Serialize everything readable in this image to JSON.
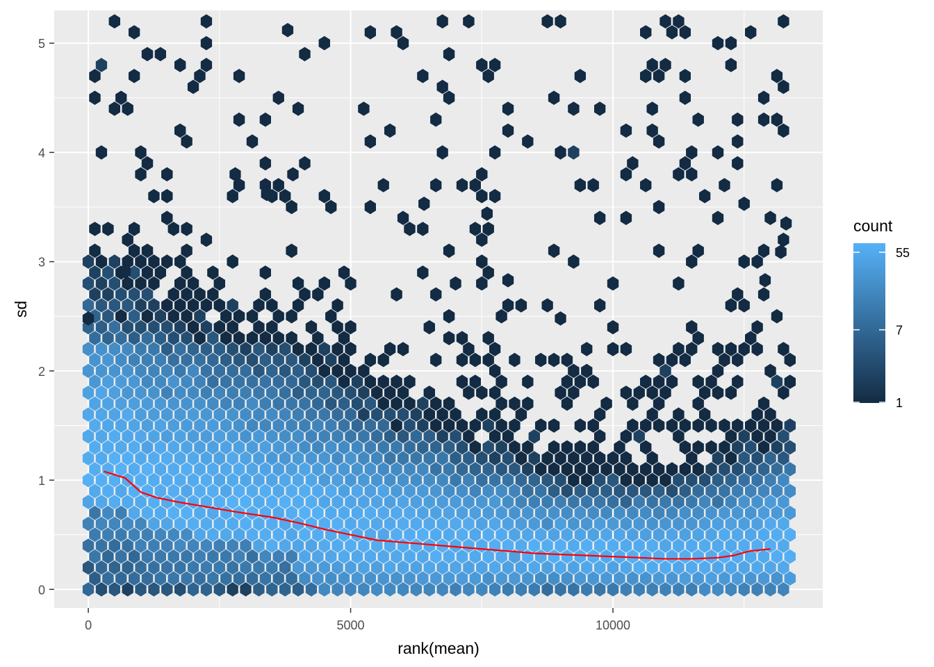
{
  "chart_data": {
    "type": "hexbin",
    "xlabel": "rank(mean)",
    "ylabel": "sd",
    "xlim": [
      -650,
      14000
    ],
    "ylim": [
      -0.17,
      5.3
    ],
    "x_ticks": [
      0,
      5000,
      10000
    ],
    "x_tick_labels": [
      "0",
      "5000",
      "10000"
    ],
    "y_ticks": [
      0,
      1,
      2,
      3,
      4,
      5
    ],
    "y_tick_labels": [
      "0",
      "1",
      "2",
      "3",
      "4",
      "5"
    ],
    "grid": true,
    "legend": {
      "title": "count",
      "position": "right",
      "scale": "log",
      "breaks": [
        1,
        7,
        55
      ],
      "break_labels": [
        "1",
        "7",
        "55"
      ],
      "low_color": "#132b43",
      "high_color": "#56b1f7"
    },
    "trend_line": {
      "color": "#ff0000",
      "x": [
        300,
        700,
        1000,
        1300,
        1700,
        2200,
        2800,
        3500,
        4000,
        4500,
        5000,
        5500,
        6000,
        6500,
        7000,
        7500,
        8000,
        8500,
        9000,
        9500,
        10000,
        10500,
        11000,
        11500,
        12000,
        12300,
        12600,
        13000
      ],
      "y": [
        1.08,
        1.02,
        0.89,
        0.84,
        0.8,
        0.76,
        0.71,
        0.66,
        0.61,
        0.55,
        0.5,
        0.45,
        0.43,
        0.41,
        0.39,
        0.37,
        0.35,
        0.33,
        0.32,
        0.31,
        0.3,
        0.29,
        0.28,
        0.28,
        0.29,
        0.31,
        0.35,
        0.37
      ]
    }
  }
}
